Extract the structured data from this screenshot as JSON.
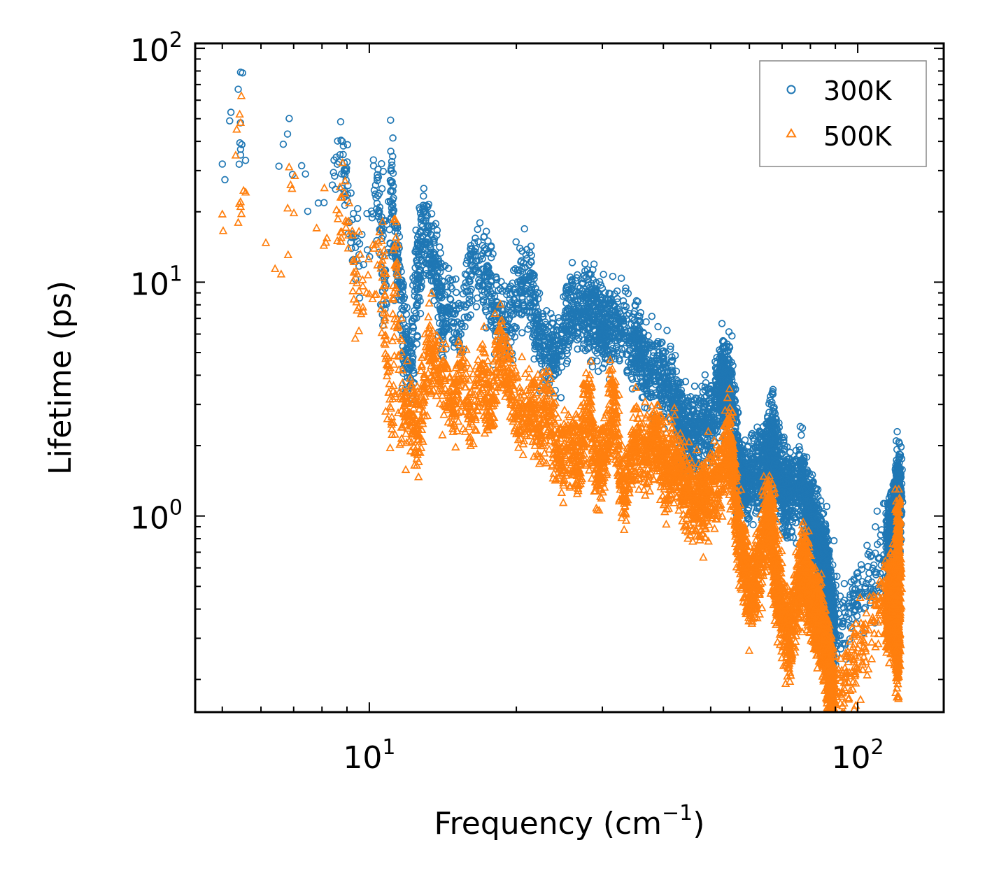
{
  "chart_data": {
    "type": "scatter",
    "title": "",
    "xlabel": "Frequency (cm",
    "xlabel_sup": "−1",
    "xlabel_suffix": ")",
    "ylabel": "Lifetime (ps)",
    "xscale": "log",
    "yscale": "log",
    "xlim": [
      4.4,
      150
    ],
    "ylim": [
      0.145,
      105
    ],
    "grid": false,
    "legend": "top-right",
    "x_ticks": [
      {
        "base": "10",
        "exp": "1",
        "value": 10
      },
      {
        "base": "10",
        "exp": "2",
        "value": 100
      }
    ],
    "y_ticks": [
      {
        "base": "10",
        "exp": "0",
        "value": 1
      },
      {
        "base": "10",
        "exp": "1",
        "value": 10
      },
      {
        "base": "10",
        "exp": "2",
        "value": 100
      }
    ],
    "series": [
      {
        "name": "300K",
        "color": "#1f77b4",
        "marker": "circle",
        "points": [
          [
            5.0,
            32
          ],
          [
            5.45,
            79
          ],
          [
            5.45,
            37
          ],
          [
            5.45,
            35
          ],
          [
            6.8,
            43
          ],
          [
            7.4,
            29
          ],
          [
            8.4,
            26
          ],
          [
            8.8,
            40
          ],
          [
            8.9,
            30
          ],
          [
            9.1,
            18
          ],
          [
            9.4,
            12.5
          ],
          [
            10.3,
            26
          ],
          [
            10.6,
            19
          ],
          [
            10.7,
            8
          ],
          [
            11.1,
            30
          ],
          [
            11.2,
            18.5
          ],
          [
            11.4,
            12.5
          ],
          [
            11.6,
            10.2
          ],
          [
            11.8,
            4.5
          ],
          [
            12.0,
            5
          ],
          [
            12.3,
            4.2
          ],
          [
            12.5,
            13.5
          ],
          [
            12.7,
            10.5
          ],
          [
            12.9,
            20
          ],
          [
            13.3,
            14.5
          ],
          [
            13.6,
            12.5
          ],
          [
            13.9,
            9.5
          ],
          [
            14.1,
            7
          ],
          [
            14.6,
            7.5
          ],
          [
            15.4,
            6
          ],
          [
            16.3,
            13
          ],
          [
            17.3,
            10.5
          ],
          [
            18.0,
            8
          ],
          [
            19.2,
            6.5
          ],
          [
            20.4,
            9.8
          ],
          [
            21.5,
            9.5
          ],
          [
            22.3,
            5.5
          ],
          [
            23.5,
            4.8
          ],
          [
            24.5,
            5.2
          ],
          [
            26.0,
            8
          ],
          [
            27.3,
            7.5
          ],
          [
            28.4,
            7.5
          ],
          [
            29.5,
            7.0
          ],
          [
            30.5,
            6.2
          ],
          [
            32.1,
            6.5
          ],
          [
            34.8,
            6
          ],
          [
            36.1,
            4.5
          ],
          [
            38.5,
            4.2
          ],
          [
            41.0,
            3.8
          ],
          [
            43.3,
            2.5
          ],
          [
            44.7,
            2.2
          ],
          [
            47.2,
            2.3
          ],
          [
            50.0,
            2.5
          ],
          [
            52.5,
            3.8
          ],
          [
            53.3,
            3.5
          ],
          [
            54.8,
            3.5
          ],
          [
            56.6,
            1.8
          ],
          [
            58.2,
            1.3
          ],
          [
            61.0,
            1.5
          ],
          [
            64.3,
            1.6
          ],
          [
            66.5,
            2.2
          ],
          [
            67.5,
            1.9
          ],
          [
            70.0,
            1.3
          ],
          [
            72.3,
            1.2
          ],
          [
            76.3,
            1.45
          ],
          [
            79.0,
            1.1
          ],
          [
            81.0,
            0.95
          ],
          [
            83.3,
            0.8
          ],
          [
            85.0,
            0.65
          ],
          [
            86.4,
            0.55
          ],
          [
            88.0,
            0.43
          ],
          [
            89.1,
            0.3
          ],
          [
            115.0,
            0.75
          ],
          [
            117.2,
            0.85
          ],
          [
            119.8,
            0.95
          ],
          [
            121.0,
            1.4
          ],
          [
            121.5,
            1.0
          ]
        ]
      },
      {
        "name": "500K",
        "color": "#ff7f0e",
        "marker": "triangle",
        "points": [
          [
            5.0,
            19.5
          ],
          [
            5.45,
            48
          ],
          [
            5.45,
            22
          ],
          [
            5.45,
            21
          ],
          [
            6.6,
            10.8
          ],
          [
            6.9,
            26
          ],
          [
            7.8,
            17
          ],
          [
            8.6,
            15
          ],
          [
            8.9,
            24
          ],
          [
            9.3,
            11
          ],
          [
            9.7,
            7.8
          ],
          [
            10.6,
            15
          ],
          [
            10.8,
            4.7
          ],
          [
            11.3,
            18.5
          ],
          [
            11.2,
            2.5
          ],
          [
            11.7,
            2.4
          ],
          [
            12.0,
            2.7
          ],
          [
            12.4,
            2.5
          ],
          [
            12.6,
            2.2
          ],
          [
            12.9,
            3.4
          ],
          [
            13.3,
            5.5
          ],
          [
            13.6,
            4.5
          ],
          [
            14.3,
            3.5
          ],
          [
            14.9,
            2.8
          ],
          [
            15.4,
            4.2
          ],
          [
            16.1,
            2.7
          ],
          [
            17.1,
            4
          ],
          [
            17.7,
            2.8
          ],
          [
            18.4,
            5.3
          ],
          [
            19.2,
            4.3
          ],
          [
            20.1,
            2.6
          ],
          [
            21.3,
            3.1
          ],
          [
            22.2,
            2.4
          ],
          [
            23.3,
            2.9
          ],
          [
            24.4,
            1.8
          ],
          [
            25.8,
            2.0
          ],
          [
            27.0,
            1.65
          ],
          [
            28.0,
            3.4
          ],
          [
            29.3,
            1.5
          ],
          [
            30.4,
            1.8
          ],
          [
            31.6,
            3.2
          ],
          [
            33.1,
            1.2
          ],
          [
            35.0,
            2.1
          ],
          [
            37.1,
            1.8
          ],
          [
            38.8,
            2.3
          ],
          [
            40.3,
            1.4
          ],
          [
            42.1,
            1.8
          ],
          [
            44.5,
            1.3
          ],
          [
            47.0,
            1.1
          ],
          [
            48.7,
            1.2
          ],
          [
            52.0,
            1.5
          ],
          [
            54.8,
            2.2
          ],
          [
            56.5,
            1.0
          ],
          [
            58.5,
            0.6
          ],
          [
            60.5,
            0.45
          ],
          [
            62.6,
            0.6
          ],
          [
            65.3,
            1.05
          ],
          [
            66.7,
            0.9
          ],
          [
            68.0,
            0.55
          ],
          [
            69.8,
            0.4
          ],
          [
            72.4,
            0.3
          ],
          [
            75.5,
            0.5
          ],
          [
            78.1,
            0.6
          ],
          [
            79.3,
            0.48
          ],
          [
            81.6,
            0.4
          ],
          [
            83.0,
            0.36
          ],
          [
            85.3,
            0.3
          ],
          [
            87.4,
            0.22
          ],
          [
            88.0,
            0.18
          ],
          [
            89.1,
            0.16
          ],
          [
            114.7,
            0.45
          ],
          [
            116.3,
            0.35
          ],
          [
            118.0,
            0.5
          ],
          [
            120.0,
            0.3
          ],
          [
            120.8,
            0.26
          ],
          [
            121.0,
            0.65
          ],
          [
            121.0,
            0.85
          ]
        ]
      }
    ]
  }
}
